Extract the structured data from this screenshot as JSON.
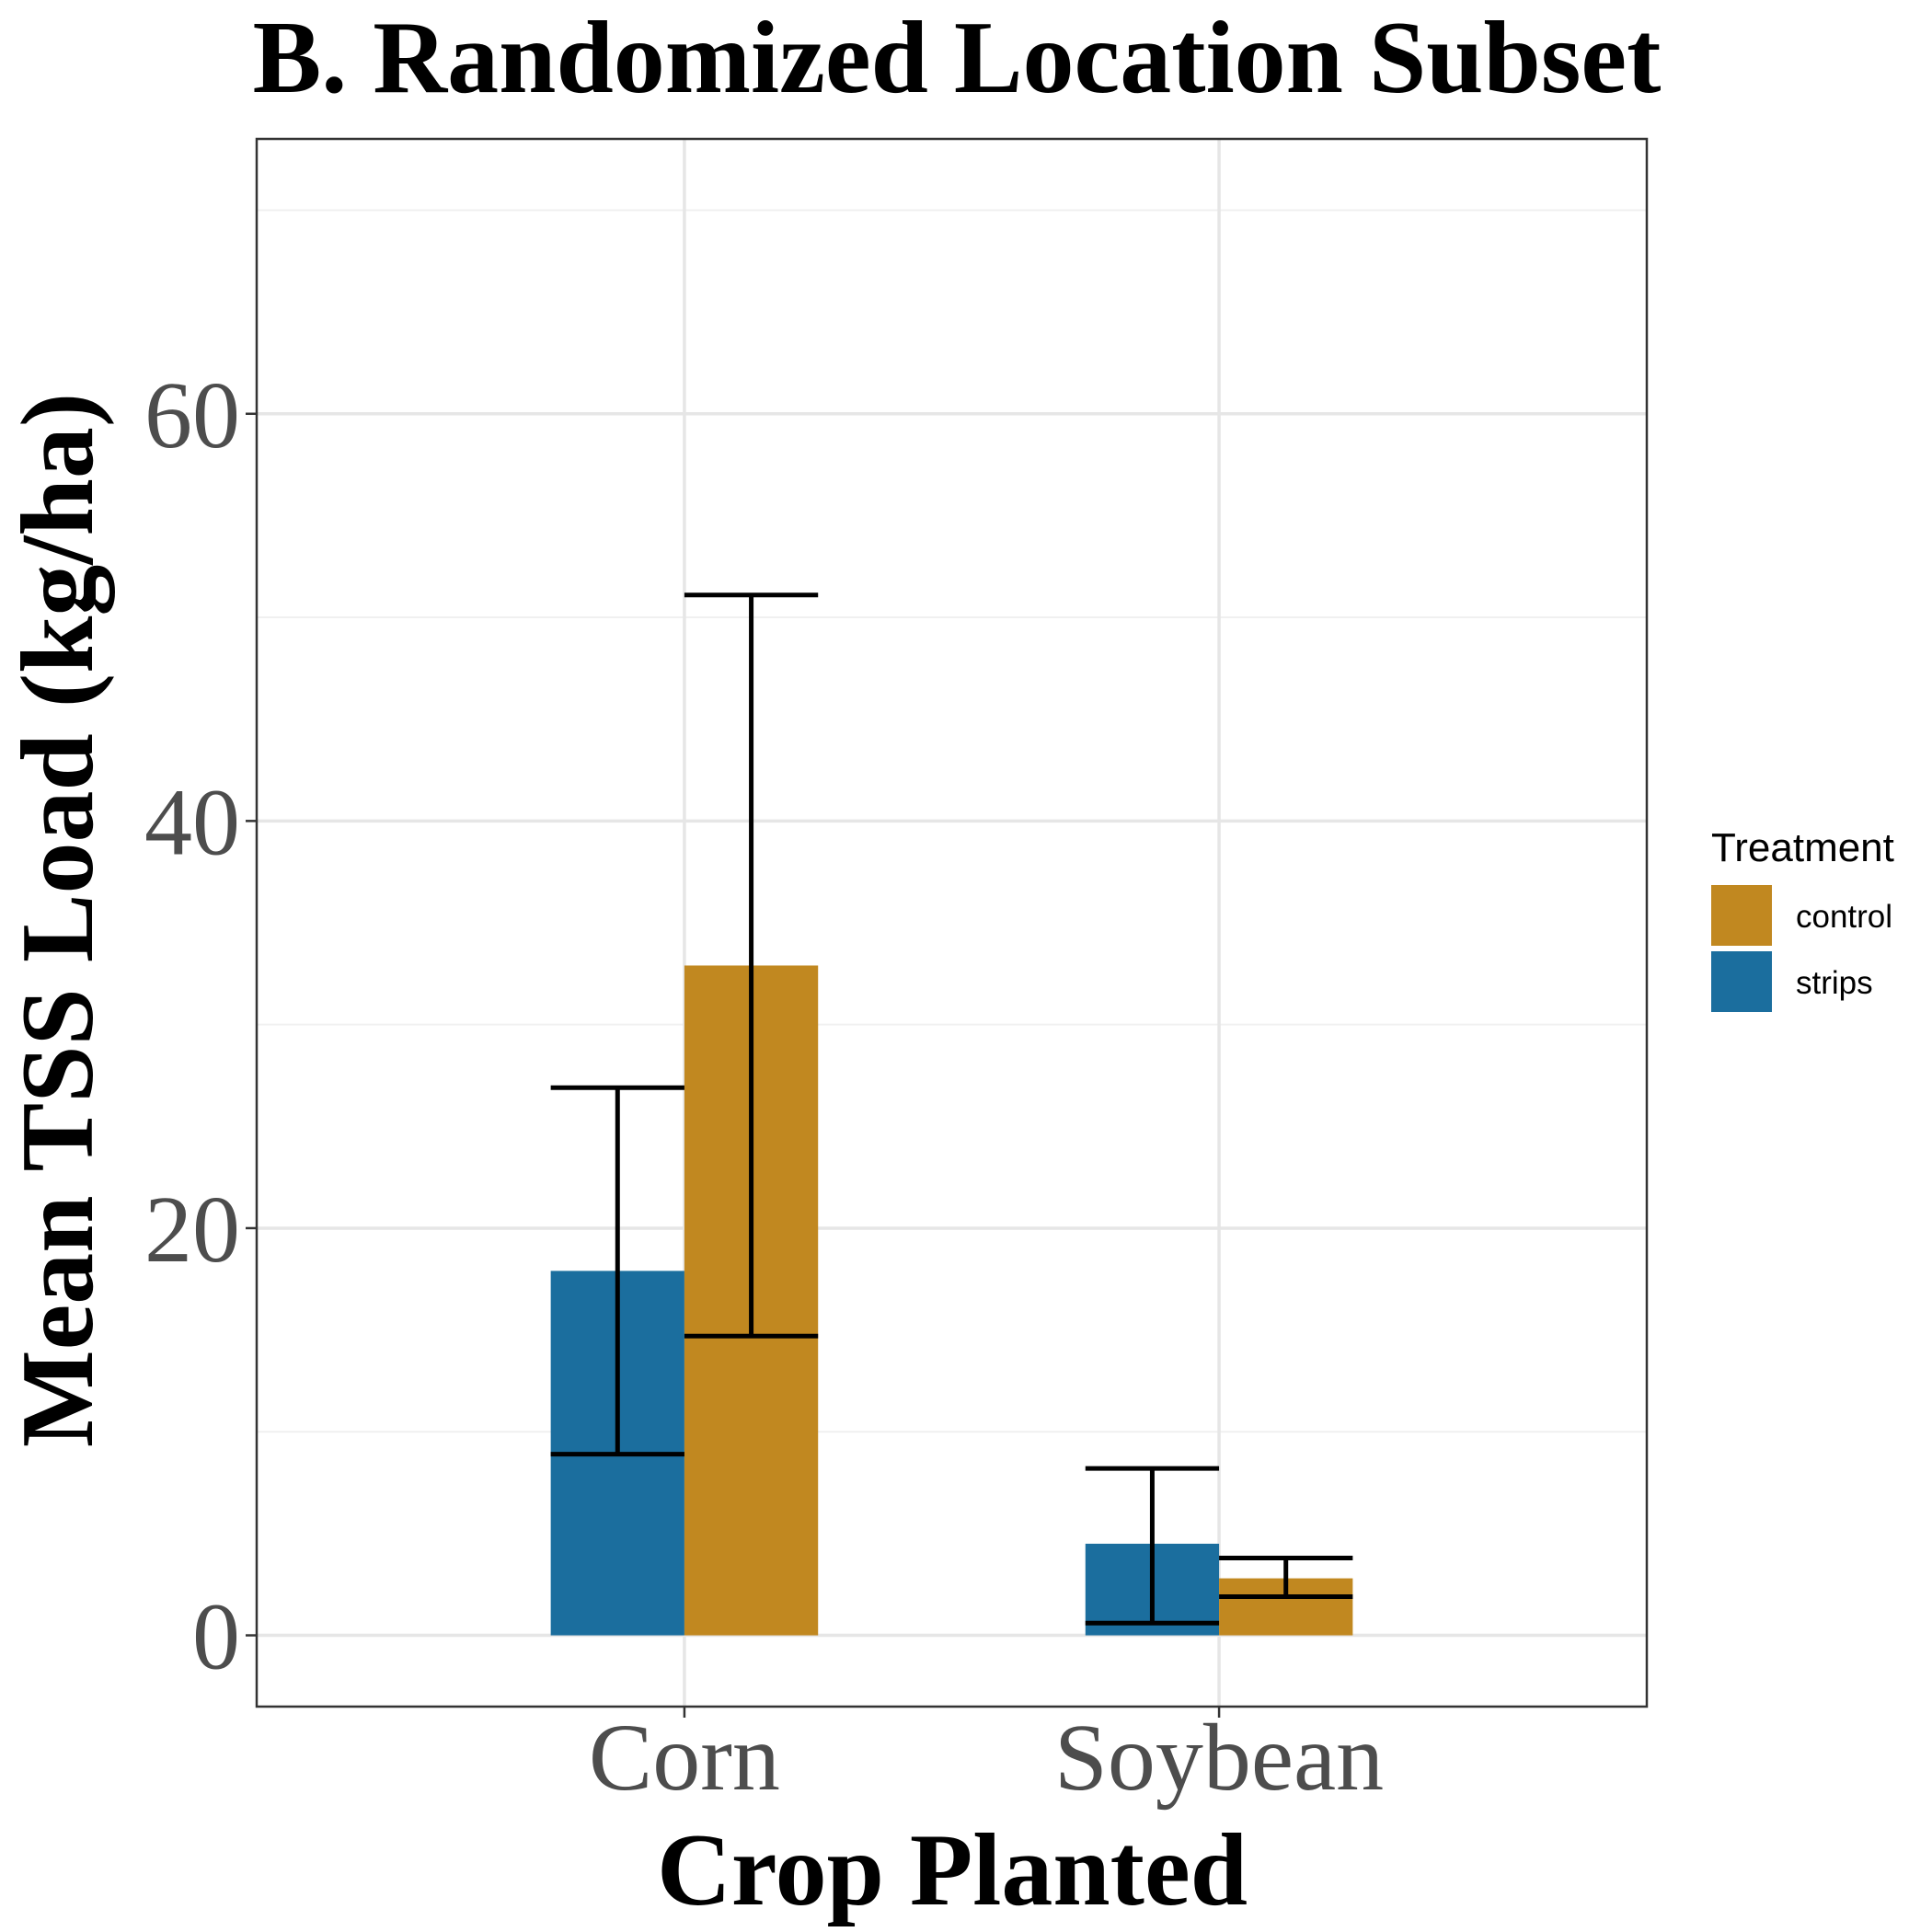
{
  "chart_data": {
    "type": "bar",
    "title": "B. Randomized Location Subset",
    "xlabel": "Crop Planted",
    "ylabel": "Mean TSS Load (kg/ha)",
    "categories": [
      "Corn",
      "Soybean"
    ],
    "ylim": [
      -3.5,
      73.5
    ],
    "yticks": [
      0,
      20,
      40,
      60
    ],
    "grid": true,
    "legend": {
      "title": "Treatment",
      "placement": "right",
      "entries": [
        {
          "name": "control",
          "color": "#c18820"
        },
        {
          "name": "strips",
          "color": "#1b6e9e"
        }
      ]
    },
    "series": [
      {
        "name": "strips",
        "color": "#1b6e9e",
        "values": [
          17.9,
          4.5
        ],
        "error_low": [
          8.9,
          0.6
        ],
        "error_high": [
          26.9,
          8.2
        ]
      },
      {
        "name": "control",
        "color": "#c18820",
        "values": [
          32.9,
          2.8
        ],
        "error_low": [
          14.7,
          1.9
        ],
        "error_high": [
          51.1,
          3.8
        ]
      }
    ]
  }
}
